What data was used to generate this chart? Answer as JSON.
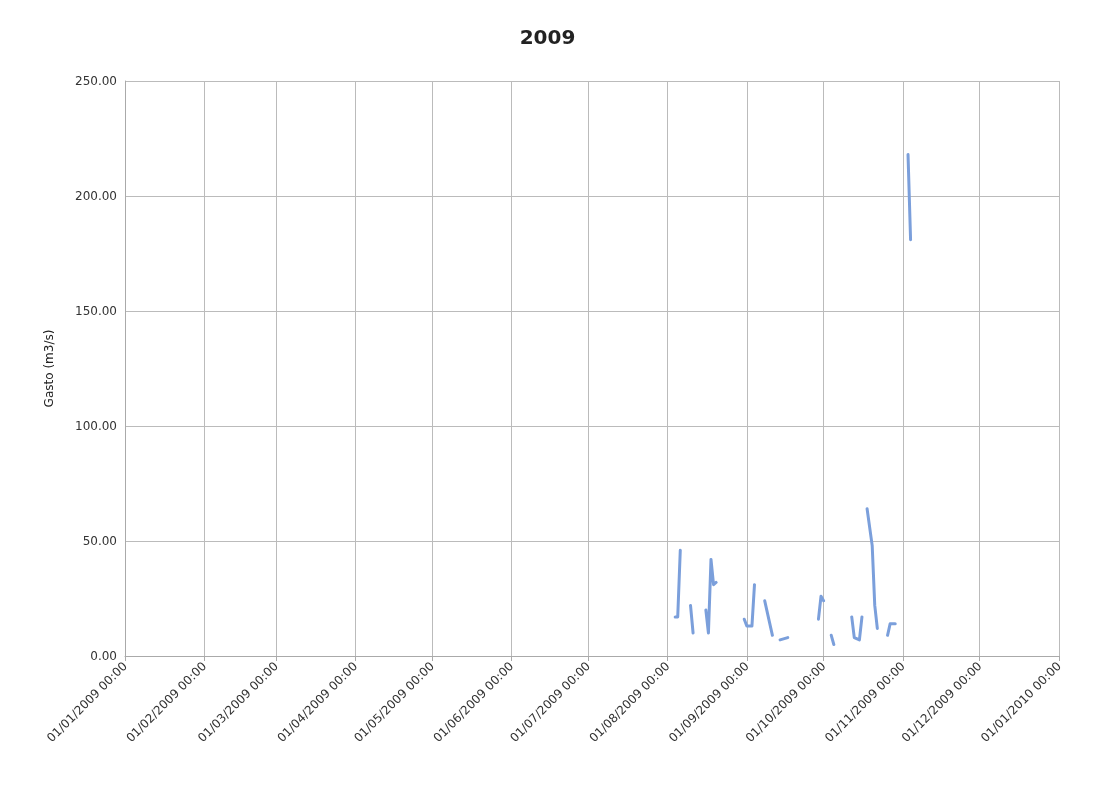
{
  "chart_data": {
    "type": "line",
    "title": "2009",
    "ylabel": "Gasto (m3/s)",
    "x": [
      "2009-08-04",
      "2009-08-05",
      "2009-08-06",
      "2009-08-08",
      "2009-08-10",
      "2009-08-11",
      "2009-08-14",
      "2009-08-16",
      "2009-08-17",
      "2009-08-18",
      "2009-08-19",
      "2009-08-20",
      "2009-08-25",
      "2009-08-31",
      "2009-09-01",
      "2009-09-03",
      "2009-09-04",
      "2009-09-06",
      "2009-09-08",
      "2009-09-11",
      "2009-09-13",
      "2009-09-14",
      "2009-09-17",
      "2009-09-22",
      "2009-09-29",
      "2009-09-30",
      "2009-10-01",
      "2009-10-02",
      "2009-10-04",
      "2009-10-05",
      "2009-10-09",
      "2009-10-12",
      "2009-10-13",
      "2009-10-15",
      "2009-10-16",
      "2009-10-17",
      "2009-10-18",
      "2009-10-20",
      "2009-10-21",
      "2009-10-22",
      "2009-10-24",
      "2009-10-26",
      "2009-10-27",
      "2009-10-29",
      "2009-10-31",
      "2009-11-03",
      "2009-11-04"
    ],
    "series": [
      {
        "color": "#7b9fdb",
        "values": [
          17,
          17,
          46,
          null,
          22,
          10,
          null,
          20,
          10,
          42,
          31,
          32,
          null,
          16,
          13,
          13,
          31,
          null,
          24,
          9,
          null,
          7,
          8,
          null,
          16,
          26,
          24,
          null,
          9,
          5,
          null,
          17,
          8,
          7,
          17,
          null,
          64,
          48,
          22,
          12,
          null,
          9,
          14,
          14,
          null,
          218,
          181
        ]
      }
    ],
    "xlim": [
      "2009-01-01",
      "2010-01-01"
    ],
    "xticks": [
      {
        "value": "2009-01-01",
        "label": "01/01/2009 00:00"
      },
      {
        "value": "2009-02-01",
        "label": "01/02/2009 00:00"
      },
      {
        "value": "2009-03-01",
        "label": "01/03/2009 00:00"
      },
      {
        "value": "2009-04-01",
        "label": "01/04/2009 00:00"
      },
      {
        "value": "2009-05-01",
        "label": "01/05/2009 00:00"
      },
      {
        "value": "2009-06-01",
        "label": "01/06/2009 00:00"
      },
      {
        "value": "2009-07-01",
        "label": "01/07/2009 00:00"
      },
      {
        "value": "2009-08-01",
        "label": "01/08/2009 00:00"
      },
      {
        "value": "2009-09-01",
        "label": "01/09/2009 00:00"
      },
      {
        "value": "2009-10-01",
        "label": "01/10/2009 00:00"
      },
      {
        "value": "2009-11-01",
        "label": "01/11/2009 00:00"
      },
      {
        "value": "2009-12-01",
        "label": "01/12/2009 00:00"
      },
      {
        "value": "2010-01-01",
        "label": "01/01/2010 00:00"
      }
    ],
    "ylim": [
      0,
      250
    ],
    "yticks": [
      {
        "value": 0,
        "label": "0.00"
      },
      {
        "value": 50,
        "label": "50.00"
      },
      {
        "value": 100,
        "label": "100.00"
      },
      {
        "value": 150,
        "label": "150.00"
      },
      {
        "value": 200,
        "label": "200.00"
      },
      {
        "value": 250,
        "label": "250.00"
      }
    ],
    "grid": true,
    "marker": "none"
  }
}
